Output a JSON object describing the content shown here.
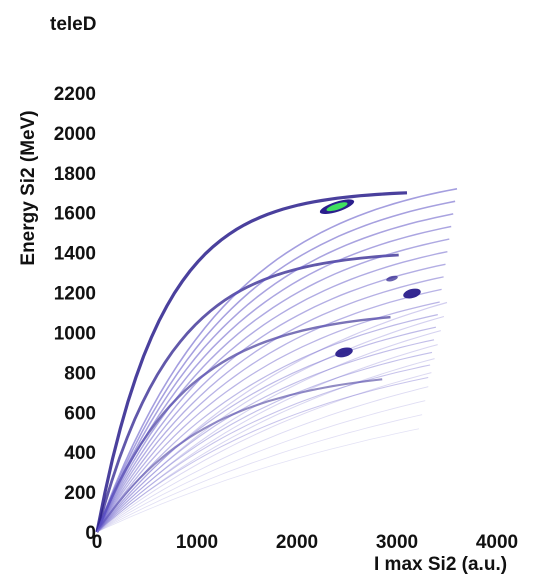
{
  "chart_data": {
    "type": "heatmap",
    "title": "teleD",
    "xlabel": "I max Si2 (a.u.)",
    "ylabel": "Energy Si2 (MeV)",
    "xlim": [
      0,
      4500
    ],
    "ylim": [
      0,
      2250
    ],
    "x_ticks": [
      0,
      1000,
      2000,
      3000,
      4000
    ],
    "x_tick_labels": [
      "0",
      "1000",
      "2000",
      "3000",
      "4000"
    ],
    "y_ticks": [
      0,
      200,
      400,
      600,
      800,
      1000,
      1200,
      1400,
      1600,
      1800,
      2000,
      2200
    ],
    "y_tick_labels": [
      "0",
      "200",
      "400",
      "600",
      "800",
      "1000",
      "1200",
      "1400",
      "1600",
      "1800",
      "2000",
      "2200"
    ],
    "grid": false,
    "colormap": [
      "#ffffff",
      "#c8c8f0",
      "#5050c0",
      "#2a1e8c",
      "#20a0a0",
      "#40e060"
    ],
    "band_families": [
      {
        "endpoint_x": 3100,
        "endpoint_y": 1700,
        "k": 1.6,
        "bands": 4,
        "intensity": "high"
      },
      {
        "endpoint_x": 3600,
        "endpoint_y": 1720,
        "k": 0.9,
        "bands": 16,
        "intensity": "medium"
      },
      {
        "endpoint_x": 3500,
        "endpoint_y": 1150,
        "k": 0.5,
        "bands": 10,
        "intensity": "low"
      }
    ],
    "hot_spots": [
      {
        "x": 2400,
        "y": 1630,
        "intensity": "max",
        "color": "#40e060"
      },
      {
        "x": 3150,
        "y": 1195,
        "intensity": "high"
      },
      {
        "x": 2470,
        "y": 900,
        "intensity": "high"
      },
      {
        "x": 2950,
        "y": 1270,
        "intensity": "medium"
      }
    ]
  }
}
